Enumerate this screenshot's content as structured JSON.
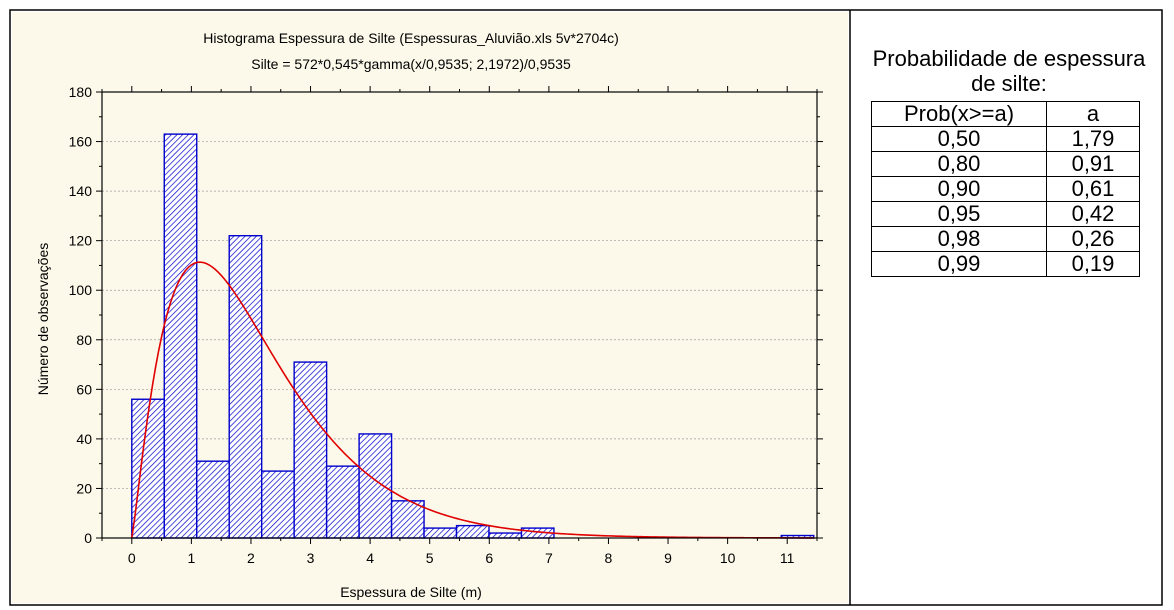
{
  "chart_data": {
    "type": "bar",
    "title": "Histograma Espessura de Silte  (Espessuras_Aluvião.xls 5v*2704c)",
    "subtitle": "Silte = 572*0,545*gamma(x/0,9535; 2,1972)/0,9535",
    "xlabel": "Espessura de Silte (m)",
    "ylabel": "Número de observações",
    "xlim": [
      -0.5,
      11.5
    ],
    "ylim": [
      0,
      180
    ],
    "x_ticks": [
      "0",
      "1",
      "2",
      "3",
      "4",
      "5",
      "6",
      "7",
      "8",
      "9",
      "10",
      "11"
    ],
    "y_ticks": [
      "0",
      "20",
      "40",
      "60",
      "80",
      "100",
      "120",
      "140",
      "160",
      "180"
    ],
    "bin_width": 0.545,
    "bins": [
      {
        "x0": 0.0,
        "x1": 0.545,
        "value": 56
      },
      {
        "x0": 0.545,
        "x1": 1.09,
        "value": 163
      },
      {
        "x0": 1.09,
        "x1": 1.635,
        "value": 31
      },
      {
        "x0": 1.635,
        "x1": 2.18,
        "value": 122
      },
      {
        "x0": 2.18,
        "x1": 2.725,
        "value": 27
      },
      {
        "x0": 2.725,
        "x1": 3.27,
        "value": 71
      },
      {
        "x0": 3.27,
        "x1": 3.815,
        "value": 29
      },
      {
        "x0": 3.815,
        "x1": 4.36,
        "value": 42
      },
      {
        "x0": 4.36,
        "x1": 4.905,
        "value": 15
      },
      {
        "x0": 4.905,
        "x1": 5.45,
        "value": 4
      },
      {
        "x0": 5.45,
        "x1": 5.995,
        "value": 5
      },
      {
        "x0": 5.995,
        "x1": 6.54,
        "value": 2
      },
      {
        "x0": 6.54,
        "x1": 7.085,
        "value": 4
      },
      {
        "x0": 7.085,
        "x1": 7.63,
        "value": 0
      },
      {
        "x0": 7.63,
        "x1": 8.175,
        "value": 0
      },
      {
        "x0": 8.175,
        "x1": 8.72,
        "value": 0
      },
      {
        "x0": 8.72,
        "x1": 9.265,
        "value": 0
      },
      {
        "x0": 9.265,
        "x1": 9.81,
        "value": 0
      },
      {
        "x0": 9.81,
        "x1": 10.355,
        "value": 0
      },
      {
        "x0": 10.355,
        "x1": 10.9,
        "value": 0
      },
      {
        "x0": 10.9,
        "x1": 11.445,
        "value": 1
      }
    ],
    "fit_curve": {
      "type": "gamma",
      "n": 572,
      "bin_width": 0.545,
      "scale": 0.9535,
      "shape": 2.1972
    },
    "grid": true,
    "colors": {
      "bar_edge": "#0000cc",
      "bar_hatch": "#0000cc",
      "curve": "#e00000",
      "background": "#fdf9ea",
      "grid": "#9a9a9a"
    }
  },
  "prob_table": {
    "title": "Probabilidade de espessura de silte:",
    "headers": [
      "Prob(x>=a)",
      "a"
    ],
    "rows": [
      [
        "0,50",
        "1,79"
      ],
      [
        "0,80",
        "0,91"
      ],
      [
        "0,90",
        "0,61"
      ],
      [
        "0,95",
        "0,42"
      ],
      [
        "0,98",
        "0,26"
      ],
      [
        "0,99",
        "0,19"
      ]
    ]
  }
}
